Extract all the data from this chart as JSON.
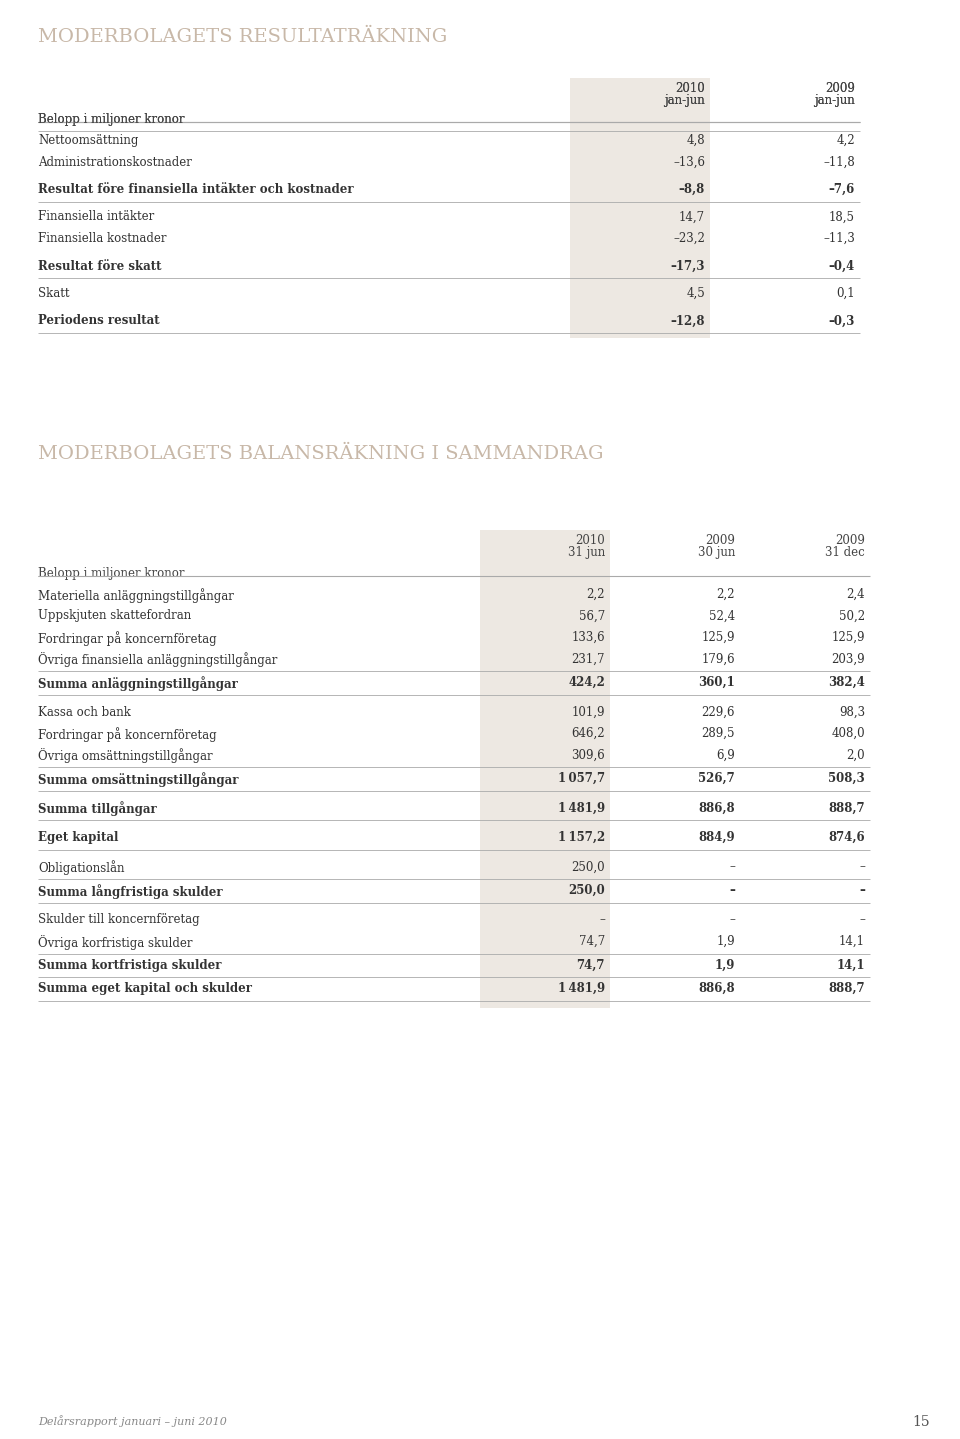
{
  "background_color": "#ffffff",
  "title1": "MODERBOLAGETS RESULTATRÄKNING",
  "title2": "MODERBOLAGETS BALANSRÄKNING I SAMMANDRAG",
  "title_color": "#c8b8a8",
  "header_bg": "#ede8e2",
  "header_text_color": "#333333",
  "body_text_color": "#333333",
  "footer_text": "Delårsrapport januari – juni 2010",
  "footer_page": "15",
  "table1_rows": [
    {
      "label": "Nettoomsättning",
      "v1": "4,8",
      "v2": "4,2",
      "bold": false,
      "sep_before": true,
      "sep_after": false,
      "gap_after": false
    },
    {
      "label": "Administrationskostnader",
      "v1": "–13,6",
      "v2": "–11,8",
      "bold": false,
      "sep_before": false,
      "sep_after": false,
      "gap_after": true
    },
    {
      "label": "Resultat före finansiella intäkter och kostnader",
      "v1": "–8,8",
      "v2": "–7,6",
      "bold": true,
      "sep_before": false,
      "sep_after": true,
      "gap_after": true
    },
    {
      "label": "Finansiella intäkter",
      "v1": "14,7",
      "v2": "18,5",
      "bold": false,
      "sep_before": false,
      "sep_after": false,
      "gap_after": false
    },
    {
      "label": "Finansiella kostnader",
      "v1": "–23,2",
      "v2": "–11,3",
      "bold": false,
      "sep_before": false,
      "sep_after": false,
      "gap_after": true
    },
    {
      "label": "Resultat före skatt",
      "v1": "–17,3",
      "v2": "–0,4",
      "bold": true,
      "sep_before": false,
      "sep_after": true,
      "gap_after": true
    },
    {
      "label": "Skatt",
      "v1": "4,5",
      "v2": "0,1",
      "bold": false,
      "sep_before": false,
      "sep_after": false,
      "gap_after": true
    },
    {
      "label": "Periodens resultat",
      "v1": "–12,8",
      "v2": "–0,3",
      "bold": true,
      "sep_before": false,
      "sep_after": true,
      "gap_after": false
    }
  ],
  "table2_rows": [
    {
      "label": "Materiella anläggningstillgångar",
      "v1": "2,2",
      "v2": "2,2",
      "v3": "2,4",
      "bold": false,
      "sep_before": false,
      "sep_after": false,
      "gap_after": false
    },
    {
      "label": "Uppskjuten skattefordran",
      "v1": "56,7",
      "v2": "52,4",
      "v3": "50,2",
      "bold": false,
      "sep_before": false,
      "sep_after": false,
      "gap_after": false
    },
    {
      "label": "Fordringar på koncernföretag",
      "v1": "133,6",
      "v2": "125,9",
      "v3": "125,9",
      "bold": false,
      "sep_before": false,
      "sep_after": false,
      "gap_after": false
    },
    {
      "label": "Övriga finansiella anläggningstillgångar",
      "v1": "231,7",
      "v2": "179,6",
      "v3": "203,9",
      "bold": false,
      "sep_before": false,
      "sep_after": false,
      "gap_after": false
    },
    {
      "label": "Summa anläggningstillgångar",
      "v1": "424,2",
      "v2": "360,1",
      "v3": "382,4",
      "bold": true,
      "sep_before": true,
      "sep_after": true,
      "gap_after": true
    },
    {
      "label": "Kassa och bank",
      "v1": "101,9",
      "v2": "229,6",
      "v3": "98,3",
      "bold": false,
      "sep_before": false,
      "sep_after": false,
      "gap_after": false
    },
    {
      "label": "Fordringar på koncernföretag",
      "v1": "646,2",
      "v2": "289,5",
      "v3": "408,0",
      "bold": false,
      "sep_before": false,
      "sep_after": false,
      "gap_after": false
    },
    {
      "label": "Övriga omsättningstillgångar",
      "v1": "309,6",
      "v2": "6,9",
      "v3": "2,0",
      "bold": false,
      "sep_before": false,
      "sep_after": false,
      "gap_after": false
    },
    {
      "label": "Summa omsättningstillgångar",
      "v1": "1 057,7",
      "v2": "526,7",
      "v3": "508,3",
      "bold": true,
      "sep_before": true,
      "sep_after": true,
      "gap_after": true
    },
    {
      "label": "Summa tillgångar",
      "v1": "1 481,9",
      "v2": "886,8",
      "v3": "888,7",
      "bold": true,
      "sep_before": false,
      "sep_after": true,
      "gap_after": true
    },
    {
      "label": "Eget kapital",
      "v1": "1 157,2",
      "v2": "884,9",
      "v3": "874,6",
      "bold": true,
      "sep_before": false,
      "sep_after": true,
      "gap_after": true
    },
    {
      "label": "Obligationslån",
      "v1": "250,0",
      "v2": "–",
      "v3": "–",
      "bold": false,
      "sep_before": false,
      "sep_after": false,
      "gap_after": false
    },
    {
      "label": "Summa långfristiga skulder",
      "v1": "250,0",
      "v2": "–",
      "v3": "–",
      "bold": true,
      "sep_before": true,
      "sep_after": true,
      "gap_after": true
    },
    {
      "label": "Skulder till koncernföretag",
      "v1": "–",
      "v2": "–",
      "v3": "–",
      "bold": false,
      "sep_before": false,
      "sep_after": false,
      "gap_after": false
    },
    {
      "label": "Övriga korfristiga skulder",
      "v1": "74,7",
      "v2": "1,9",
      "v3": "14,1",
      "bold": false,
      "sep_before": false,
      "sep_after": false,
      "gap_after": false
    },
    {
      "label": "Summa kortfristiga skulder",
      "v1": "74,7",
      "v2": "1,9",
      "v3": "14,1",
      "bold": true,
      "sep_before": true,
      "sep_after": true,
      "gap_after": false
    },
    {
      "label": "Summa eget kapital och skulder",
      "v1": "1 481,9",
      "v2": "886,8",
      "v3": "888,7",
      "bold": true,
      "sep_before": false,
      "sep_after": true,
      "gap_after": false
    }
  ]
}
